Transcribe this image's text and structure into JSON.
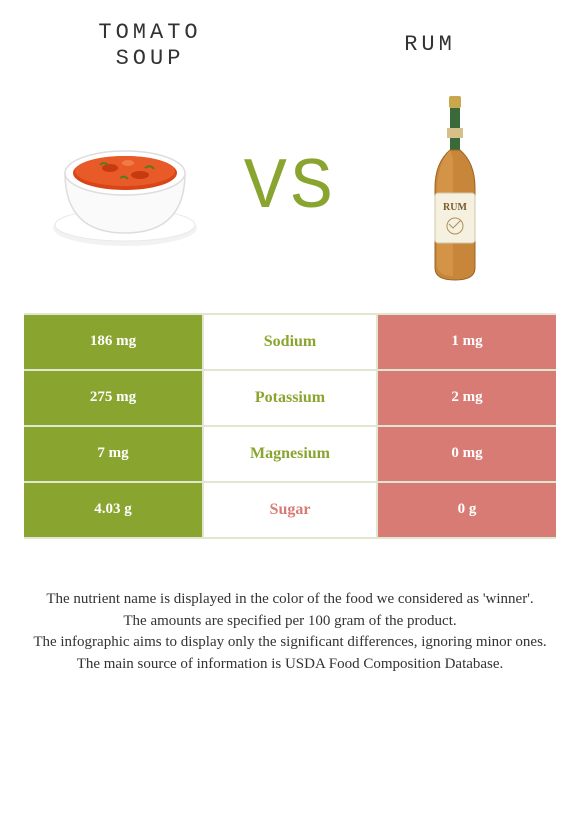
{
  "titles": {
    "left_line1": "TOMATO",
    "left_line2": "SOUP",
    "right": "RUM"
  },
  "vs_text": "VS",
  "palette": {
    "left_bar": "#8aa52f",
    "right_bar": "#d87b74",
    "mid_text_left_win": "#8aa52f",
    "mid_text_right_win": "#d87b74",
    "border": "#e0e6d0",
    "background": "#ffffff",
    "text": "#333333"
  },
  "imagery": {
    "left_icon": "tomato-soup-bowl",
    "right_icon": "rum-bottle"
  },
  "rows": [
    {
      "label": "Sodium",
      "left": "186 mg",
      "right": "1 mg",
      "winner": "left"
    },
    {
      "label": "Potassium",
      "left": "275 mg",
      "right": "2 mg",
      "winner": "left"
    },
    {
      "label": "Magnesium",
      "left": "7 mg",
      "right": "0 mg",
      "winner": "left"
    },
    {
      "label": "Sugar",
      "left": "4.03 g",
      "right": "0 g",
      "winner": "right"
    }
  ],
  "footnotes": [
    "The nutrient name is displayed in the color of the food we considered as 'winner'.",
    "The amounts are specified per 100 gram of the product.",
    "The infographic aims to display only the significant differences, ignoring minor ones.",
    "The main source of information is USDA Food Composition Database."
  ]
}
